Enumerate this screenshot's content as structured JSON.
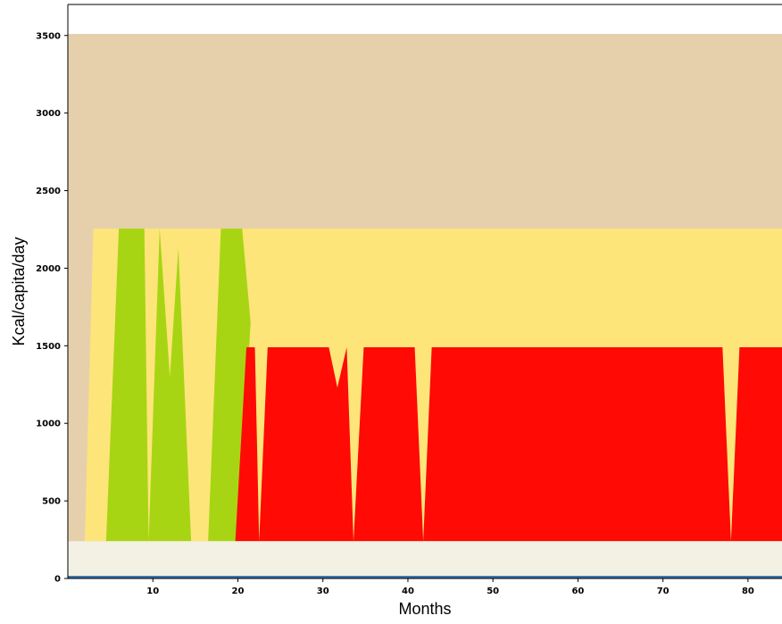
{
  "chart_data": {
    "type": "area",
    "title": "",
    "xlabel": "Months",
    "ylabel": "Kcal/capita/day",
    "xlim": [
      0,
      84
    ],
    "ylim": [
      0,
      3700
    ],
    "grid": false,
    "x_ticks": [
      10,
      20,
      30,
      40,
      50,
      60,
      70,
      80
    ],
    "y_ticks": [
      0,
      500,
      1000,
      1500,
      2000,
      2500,
      3000,
      3500
    ],
    "colors": {
      "tan": "#e6d0ac",
      "yellow": "#fde57a",
      "green": "#a8d513",
      "red": "#ff0a05",
      "cream": "#f2f1e3",
      "blue": "#2e6da4"
    },
    "series": [
      {
        "color": "tan",
        "kind": "band",
        "points": [
          [
            0,
            0
          ],
          [
            84,
            0
          ],
          [
            84,
            3510
          ],
          [
            0,
            3510
          ]
        ]
      },
      {
        "color": "yellow",
        "kind": "band",
        "points": [
          [
            2,
            240
          ],
          [
            84,
            240
          ],
          [
            84,
            2255
          ],
          [
            3,
            2255
          ]
        ]
      },
      {
        "color": "green",
        "kind": "polygon",
        "points": [
          [
            4.5,
            240
          ],
          [
            6,
            2255
          ],
          [
            9,
            2255
          ],
          [
            9.5,
            240
          ]
        ]
      },
      {
        "color": "green",
        "kind": "polygon",
        "points": [
          [
            9.5,
            240
          ],
          [
            10.8,
            2255
          ],
          [
            12,
            1300
          ],
          [
            13,
            2130
          ],
          [
            14.5,
            240
          ]
        ]
      },
      {
        "color": "green",
        "kind": "polygon",
        "points": [
          [
            16.5,
            240
          ],
          [
            18,
            2255
          ],
          [
            20.5,
            2255
          ],
          [
            21.5,
            1650
          ],
          [
            20,
            240
          ]
        ]
      },
      {
        "color": "red",
        "kind": "polygon",
        "points": [
          [
            19.7,
            240
          ],
          [
            21,
            1490
          ],
          [
            22,
            1490
          ],
          [
            22.5,
            240
          ],
          [
            23.5,
            1490
          ],
          [
            30.7,
            1490
          ],
          [
            31.7,
            1230
          ],
          [
            32.8,
            1490
          ],
          [
            33.6,
            240
          ],
          [
            34.8,
            1490
          ],
          [
            40.8,
            1490
          ],
          [
            41.8,
            240
          ],
          [
            42.8,
            1490
          ],
          [
            77,
            1490
          ],
          [
            78,
            240
          ],
          [
            79,
            1490
          ],
          [
            84,
            1490
          ],
          [
            84,
            240
          ]
        ]
      },
      {
        "color": "cream",
        "kind": "band",
        "points": [
          [
            0,
            8
          ],
          [
            84,
            8
          ],
          [
            84,
            240
          ],
          [
            0,
            240
          ]
        ]
      },
      {
        "color": "blue",
        "kind": "line",
        "points": [
          [
            0,
            8
          ],
          [
            84,
            8
          ]
        ]
      }
    ]
  }
}
